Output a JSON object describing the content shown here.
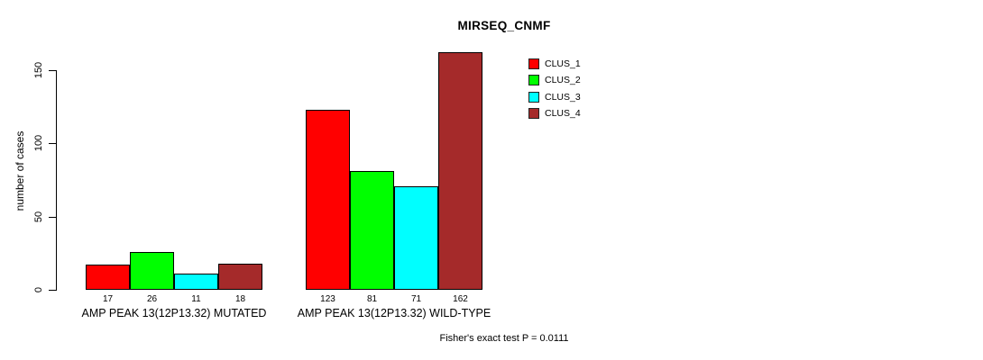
{
  "title": "MIRSEQ_CNMF",
  "footer": "Fisher's exact test P = 0.0111",
  "chart_data": {
    "type": "bar",
    "title": "MIRSEQ_CNMF",
    "xlabel": "",
    "ylabel": "number of cases",
    "categories": [
      "AMP PEAK 13(12P13.32) MUTATED",
      "AMP PEAK 13(12P13.32) WILD-TYPE"
    ],
    "series": [
      {
        "name": "CLUS_1",
        "color": "#FF0000",
        "values": [
          17,
          123
        ]
      },
      {
        "name": "CLUS_2",
        "color": "#00FF00",
        "values": [
          26,
          81
        ]
      },
      {
        "name": "CLUS_3",
        "color": "#00FFFF",
        "values": [
          11,
          71
        ]
      },
      {
        "name": "CLUS_4",
        "color": "#A52A2A",
        "values": [
          18,
          162
        ]
      }
    ],
    "bar_value_labels": [
      [
        17,
        26,
        11,
        18
      ],
      [
        123,
        81,
        71,
        162
      ]
    ],
    "yticks": [
      0,
      50,
      100,
      150
    ],
    "ylim": [
      0,
      170
    ],
    "grid": false,
    "legend_position": "top-right",
    "legend_entries": [
      "CLUS_1",
      "CLUS_2",
      "CLUS_3",
      "CLUS_4"
    ],
    "annotation": "Fisher's exact test P = 0.0111"
  }
}
